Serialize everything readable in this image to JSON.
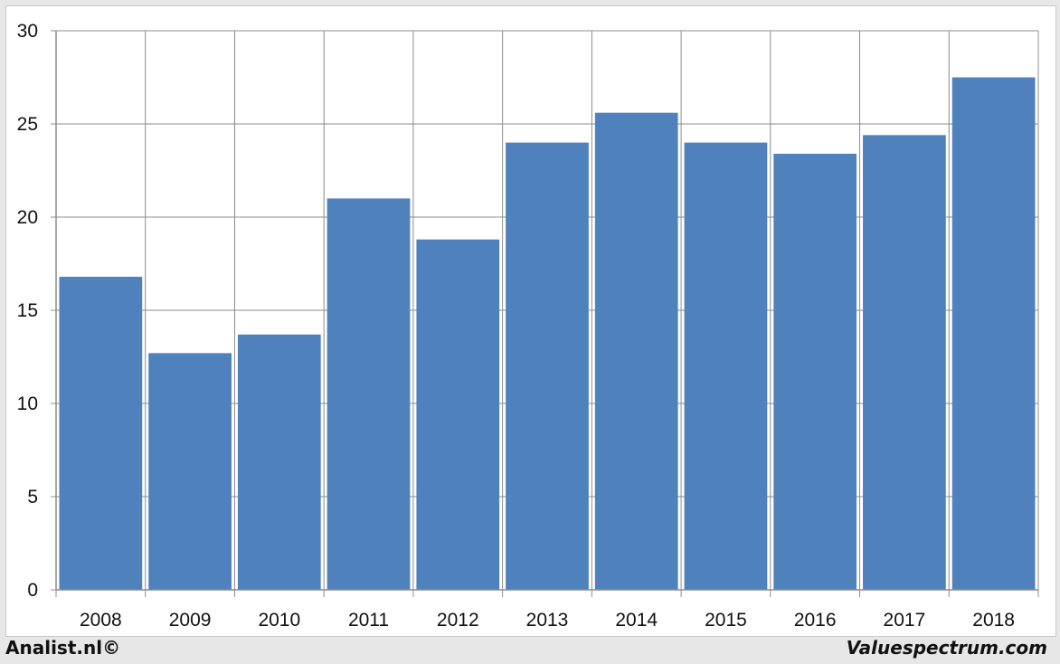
{
  "chart_data": {
    "type": "bar",
    "categories": [
      "2008",
      "2009",
      "2010",
      "2011",
      "2012",
      "2013",
      "2014",
      "2015",
      "2016",
      "2017",
      "2018"
    ],
    "values": [
      16.8,
      12.7,
      13.7,
      21.0,
      18.8,
      24.0,
      25.6,
      24.0,
      23.4,
      24.4,
      27.5
    ],
    "ylim": [
      0,
      30
    ],
    "yticks": [
      0,
      5,
      10,
      15,
      20,
      25,
      30
    ],
    "grid": true,
    "bar_color": "#4f81bd",
    "title": "",
    "xlabel": "",
    "ylabel": ""
  },
  "footer": {
    "left_text": "Analist.nl©",
    "right_text": "Valuespectrum.com"
  }
}
